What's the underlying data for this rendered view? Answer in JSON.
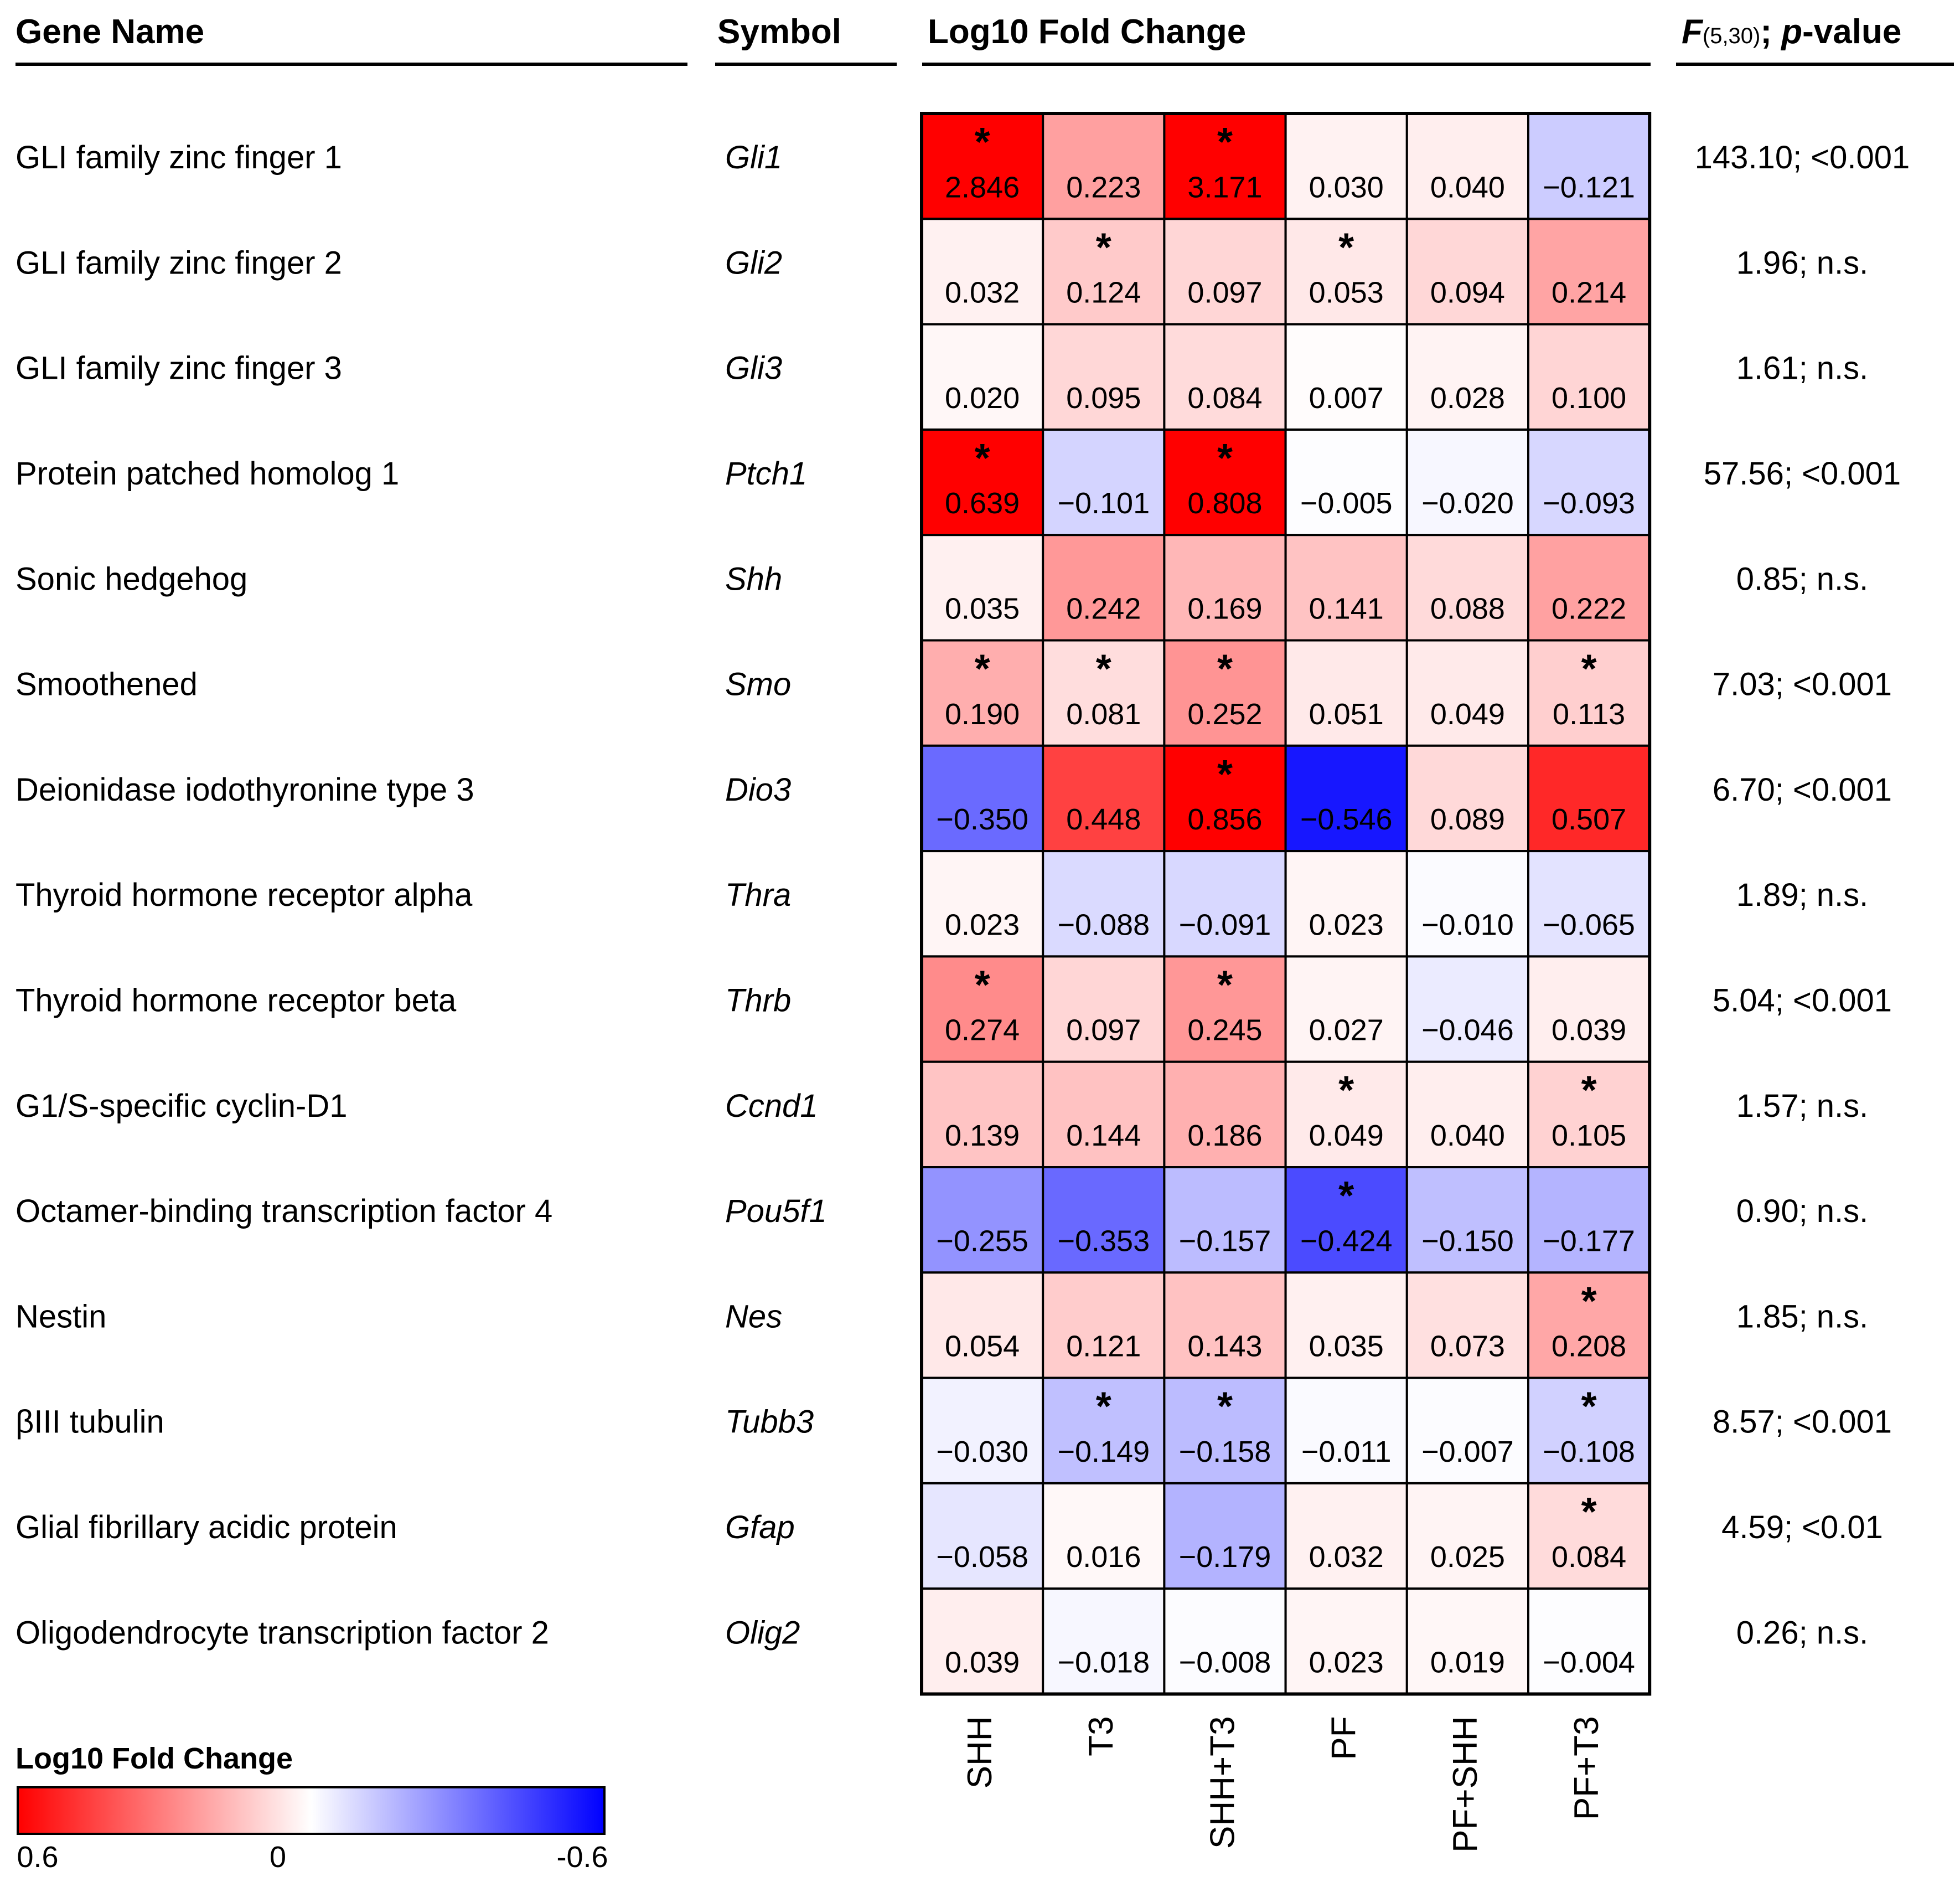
{
  "chart_data": {
    "type": "heatmap",
    "title": "Log10 Fold Change",
    "headers": {
      "gene_name": "Gene Name",
      "symbol": "Symbol",
      "value": "Log10 Fold Change",
      "stat_letter": "F",
      "stat_df": "(5,30)",
      "stat_sep": "; ",
      "stat_p": "p",
      "stat_suffix": "-value"
    },
    "columns": [
      "SHH",
      "T3",
      "SHH+T3",
      "PF",
      "PF+SHH",
      "PF+T3"
    ],
    "rows": [
      {
        "gene": "GLI family zinc finger 1",
        "symbol": "Gli1",
        "values": [
          2.846,
          0.223,
          3.171,
          0.03,
          0.04,
          -0.121
        ],
        "labels": [
          "2.846",
          "0.223",
          "3.171",
          "0.030",
          "0.040",
          "−0.121"
        ],
        "sig": [
          true,
          false,
          true,
          false,
          false,
          false
        ],
        "stat": "143.10; <0.001"
      },
      {
        "gene": "GLI family zinc finger 2",
        "symbol": "Gli2",
        "values": [
          0.032,
          0.124,
          0.097,
          0.053,
          0.094,
          0.214
        ],
        "labels": [
          "0.032",
          "0.124",
          "0.097",
          "0.053",
          "0.094",
          "0.214"
        ],
        "sig": [
          false,
          true,
          false,
          true,
          false,
          false
        ],
        "stat": "1.96; n.s."
      },
      {
        "gene": "GLI family zinc finger 3",
        "symbol": "Gli3",
        "values": [
          0.02,
          0.095,
          0.084,
          0.007,
          0.028,
          0.1
        ],
        "labels": [
          "0.020",
          "0.095",
          "0.084",
          "0.007",
          "0.028",
          "0.100"
        ],
        "sig": [
          false,
          false,
          false,
          false,
          false,
          false
        ],
        "stat": "1.61; n.s."
      },
      {
        "gene": "Protein patched homolog 1",
        "symbol": "Ptch1",
        "values": [
          0.639,
          -0.101,
          0.808,
          -0.005,
          -0.02,
          -0.093
        ],
        "labels": [
          "0.639",
          "−0.101",
          "0.808",
          "−0.005",
          "−0.020",
          "−0.093"
        ],
        "sig": [
          true,
          false,
          true,
          false,
          false,
          false
        ],
        "stat": "57.56; <0.001"
      },
      {
        "gene": "Sonic hedgehog",
        "symbol": "Shh",
        "values": [
          0.035,
          0.242,
          0.169,
          0.141,
          0.088,
          0.222
        ],
        "labels": [
          "0.035",
          "0.242",
          "0.169",
          "0.141",
          "0.088",
          "0.222"
        ],
        "sig": [
          false,
          false,
          false,
          false,
          false,
          false
        ],
        "stat": "0.85; n.s."
      },
      {
        "gene": "Smoothened",
        "symbol": "Smo",
        "values": [
          0.19,
          0.081,
          0.252,
          0.051,
          0.049,
          0.113
        ],
        "labels": [
          "0.190",
          "0.081",
          "0.252",
          "0.051",
          "0.049",
          "0.113"
        ],
        "sig": [
          true,
          true,
          true,
          false,
          false,
          true
        ],
        "stat": "7.03; <0.001"
      },
      {
        "gene": "Deionidase iodothyronine type 3",
        "symbol": "Dio3",
        "values": [
          -0.35,
          0.448,
          0.856,
          -0.546,
          0.089,
          0.507
        ],
        "labels": [
          "−0.350",
          "0.448",
          "0.856",
          "−0.546",
          "0.089",
          "0.507"
        ],
        "sig": [
          false,
          false,
          true,
          false,
          false,
          false
        ],
        "stat": "6.70; <0.001"
      },
      {
        "gene": "Thyroid hormone receptor alpha",
        "symbol": "Thra",
        "values": [
          0.023,
          -0.088,
          -0.091,
          0.023,
          -0.01,
          -0.065
        ],
        "labels": [
          "0.023",
          "−0.088",
          "−0.091",
          "0.023",
          "−0.010",
          "−0.065"
        ],
        "sig": [
          false,
          false,
          false,
          false,
          false,
          false
        ],
        "stat": "1.89; n.s."
      },
      {
        "gene": "Thyroid hormone receptor beta",
        "symbol": "Thrb",
        "values": [
          0.274,
          0.097,
          0.245,
          0.027,
          -0.046,
          0.039
        ],
        "labels": [
          "0.274",
          "0.097",
          "0.245",
          "0.027",
          "−0.046",
          "0.039"
        ],
        "sig": [
          true,
          false,
          true,
          false,
          false,
          false
        ],
        "stat": "5.04; <0.001"
      },
      {
        "gene": "G1/S-specific cyclin-D1",
        "symbol": "Ccnd1",
        "values": [
          0.139,
          0.144,
          0.186,
          0.049,
          0.04,
          0.105
        ],
        "labels": [
          "0.139",
          "0.144",
          "0.186",
          "0.049",
          "0.040",
          "0.105"
        ],
        "sig": [
          false,
          false,
          false,
          true,
          false,
          true
        ],
        "stat": "1.57; n.s."
      },
      {
        "gene": "Octamer-binding transcription factor 4",
        "symbol": "Pou5f1",
        "values": [
          -0.255,
          -0.353,
          -0.157,
          -0.424,
          -0.15,
          -0.177
        ],
        "labels": [
          "−0.255",
          "−0.353",
          "−0.157",
          "−0.424",
          "−0.150",
          "−0.177"
        ],
        "sig": [
          false,
          false,
          false,
          true,
          false,
          false
        ],
        "stat": "0.90; n.s."
      },
      {
        "gene": "Nestin",
        "symbol": "Nes",
        "values": [
          0.054,
          0.121,
          0.143,
          0.035,
          0.073,
          0.208
        ],
        "labels": [
          "0.054",
          "0.121",
          "0.143",
          "0.035",
          "0.073",
          "0.208"
        ],
        "sig": [
          false,
          false,
          false,
          false,
          false,
          true
        ],
        "stat": "1.85; n.s."
      },
      {
        "gene": "βIII tubulin",
        "symbol": "Tubb3",
        "values": [
          -0.03,
          -0.149,
          -0.158,
          -0.011,
          -0.007,
          -0.108
        ],
        "labels": [
          "−0.030",
          "−0.149",
          "−0.158",
          "−0.011",
          "−0.007",
          "−0.108"
        ],
        "sig": [
          false,
          true,
          true,
          false,
          false,
          true
        ],
        "stat": "8.57; <0.001"
      },
      {
        "gene": "Glial fibrillary acidic protein",
        "symbol": "Gfap",
        "values": [
          -0.058,
          0.016,
          -0.179,
          0.032,
          0.025,
          0.084
        ],
        "labels": [
          "−0.058",
          "0.016",
          "−0.179",
          "0.032",
          "0.025",
          "0.084"
        ],
        "sig": [
          false,
          false,
          false,
          false,
          false,
          true
        ],
        "stat": "4.59; <0.01"
      },
      {
        "gene": "Oligodendrocyte transcription factor 2",
        "symbol": "Olig2",
        "values": [
          0.039,
          -0.018,
          -0.008,
          0.023,
          0.019,
          -0.004
        ],
        "labels": [
          "0.039",
          "−0.018",
          "−0.008",
          "0.023",
          "0.019",
          "−0.004"
        ],
        "sig": [
          false,
          false,
          false,
          false,
          false,
          false
        ],
        "stat": "0.26; n.s."
      }
    ],
    "significance_marker": "*",
    "color_scale": {
      "title": "Log10 Fold Change",
      "min": -0.6,
      "max": 0.6,
      "tick_labels": [
        "0.6",
        "0",
        "-0.6"
      ],
      "high_color": "#ff0000",
      "mid_color": "#ffffff",
      "low_color": "#0000ff"
    }
  }
}
